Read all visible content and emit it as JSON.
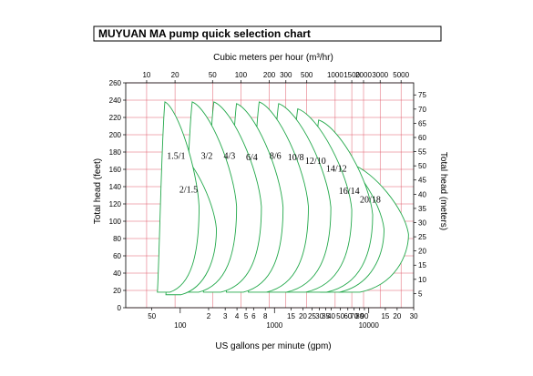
{
  "title": "MUYUAN  MA pump quick selection chart",
  "chart_data": {
    "type": "area",
    "x_top_label": "Cubic meters per hour (m³/hr)",
    "x_bottom_label": "US gallons per minute (gpm)",
    "y_left_label": "Total head (feet)",
    "y_right_label": "Total head (meters)",
    "ylim_feet": [
      0,
      260
    ],
    "ylim_meters": [
      0,
      79
    ],
    "xlim_m3h": [
      6,
      6800
    ],
    "x_scale": "log",
    "grid": true,
    "top_ticks": [
      {
        "value": 10,
        "label": "10"
      },
      {
        "value": 20,
        "label": "20"
      },
      {
        "value": 50,
        "label": "50"
      },
      {
        "value": 100,
        "label": "100"
      },
      {
        "value": 200,
        "label": "200"
      },
      {
        "value": 300,
        "label": "300"
      },
      {
        "value": 500,
        "label": "500"
      },
      {
        "value": 1000,
        "label": "1000"
      },
      {
        "value": 1500,
        "label": "1500"
      },
      {
        "value": 2000,
        "label": "2000"
      },
      {
        "value": 3000,
        "label": "3000"
      },
      {
        "value": 5000,
        "label": "5000"
      }
    ],
    "bottom_ticks_upper": [
      {
        "gpm": 50,
        "label": "50"
      },
      {
        "gpm": 200,
        "label": "2"
      },
      {
        "gpm": 300,
        "label": "3"
      },
      {
        "gpm": 400,
        "label": "4"
      },
      {
        "gpm": 500,
        "label": "5"
      },
      {
        "gpm": 600,
        "label": "6"
      },
      {
        "gpm": 800,
        "label": "8"
      },
      {
        "gpm": 1500,
        "label": "15"
      },
      {
        "gpm": 2000,
        "label": "20"
      },
      {
        "gpm": 2500,
        "label": "25"
      },
      {
        "gpm": 3000,
        "label": "30"
      },
      {
        "gpm": 3500,
        "label": "35"
      },
      {
        "gpm": 4000,
        "label": "40"
      },
      {
        "gpm": 5000,
        "label": "50"
      },
      {
        "gpm": 6000,
        "label": "60"
      },
      {
        "gpm": 7000,
        "label": "70"
      },
      {
        "gpm": 8000,
        "label": "80"
      },
      {
        "gpm": 9000,
        "label": "90"
      },
      {
        "gpm": 15000,
        "label": "15"
      },
      {
        "gpm": 20000,
        "label": "20"
      },
      {
        "gpm": 30000,
        "label": "30"
      }
    ],
    "bottom_ticks_lower": [
      {
        "gpm": 100,
        "label": "100"
      },
      {
        "gpm": 1000,
        "label": "1000"
      },
      {
        "gpm": 10000,
        "label": "10000"
      }
    ],
    "left_ticks": [
      "0",
      "20",
      "40",
      "60",
      "80",
      "100",
      "120",
      "140",
      "160",
      "180",
      "200",
      "220",
      "240",
      "260"
    ],
    "right_ticks": [
      "5",
      "10",
      "15",
      "20",
      "25",
      "30",
      "35",
      "40",
      "45",
      "50",
      "55",
      "60",
      "65",
      "70",
      "75"
    ],
    "series": [
      {
        "name": "1.5/1",
        "q_min": 13,
        "q_max": 36,
        "h_max": 238,
        "h_min": 18
      },
      {
        "name": "2/1.5",
        "q_min": 16,
        "q_max": 55,
        "h_max": 184,
        "h_min": 15
      },
      {
        "name": "3/2",
        "q_min": 24,
        "q_max": 90,
        "h_max": 238,
        "h_min": 18
      },
      {
        "name": "4/3",
        "q_min": 40,
        "q_max": 165,
        "h_max": 238,
        "h_min": 18
      },
      {
        "name": "6/4",
        "q_min": 70,
        "q_max": 280,
        "h_max": 236,
        "h_min": 18
      },
      {
        "name": "8/6",
        "q_min": 120,
        "q_max": 520,
        "h_max": 238,
        "h_min": 18
      },
      {
        "name": "10/8",
        "q_min": 190,
        "q_max": 900,
        "h_max": 236,
        "h_min": 18
      },
      {
        "name": "12/10",
        "q_min": 300,
        "q_max": 1500,
        "h_max": 230,
        "h_min": 18
      },
      {
        "name": "14/12",
        "q_min": 500,
        "q_max": 2500,
        "h_max": 217,
        "h_min": 18
      },
      {
        "name": "16/14",
        "q_min": 700,
        "q_max": 3300,
        "h_max": 180,
        "h_min": 18
      },
      {
        "name": "20/18",
        "q_min": 1100,
        "q_max": 6000,
        "h_max": 166,
        "h_min": 18
      }
    ]
  }
}
